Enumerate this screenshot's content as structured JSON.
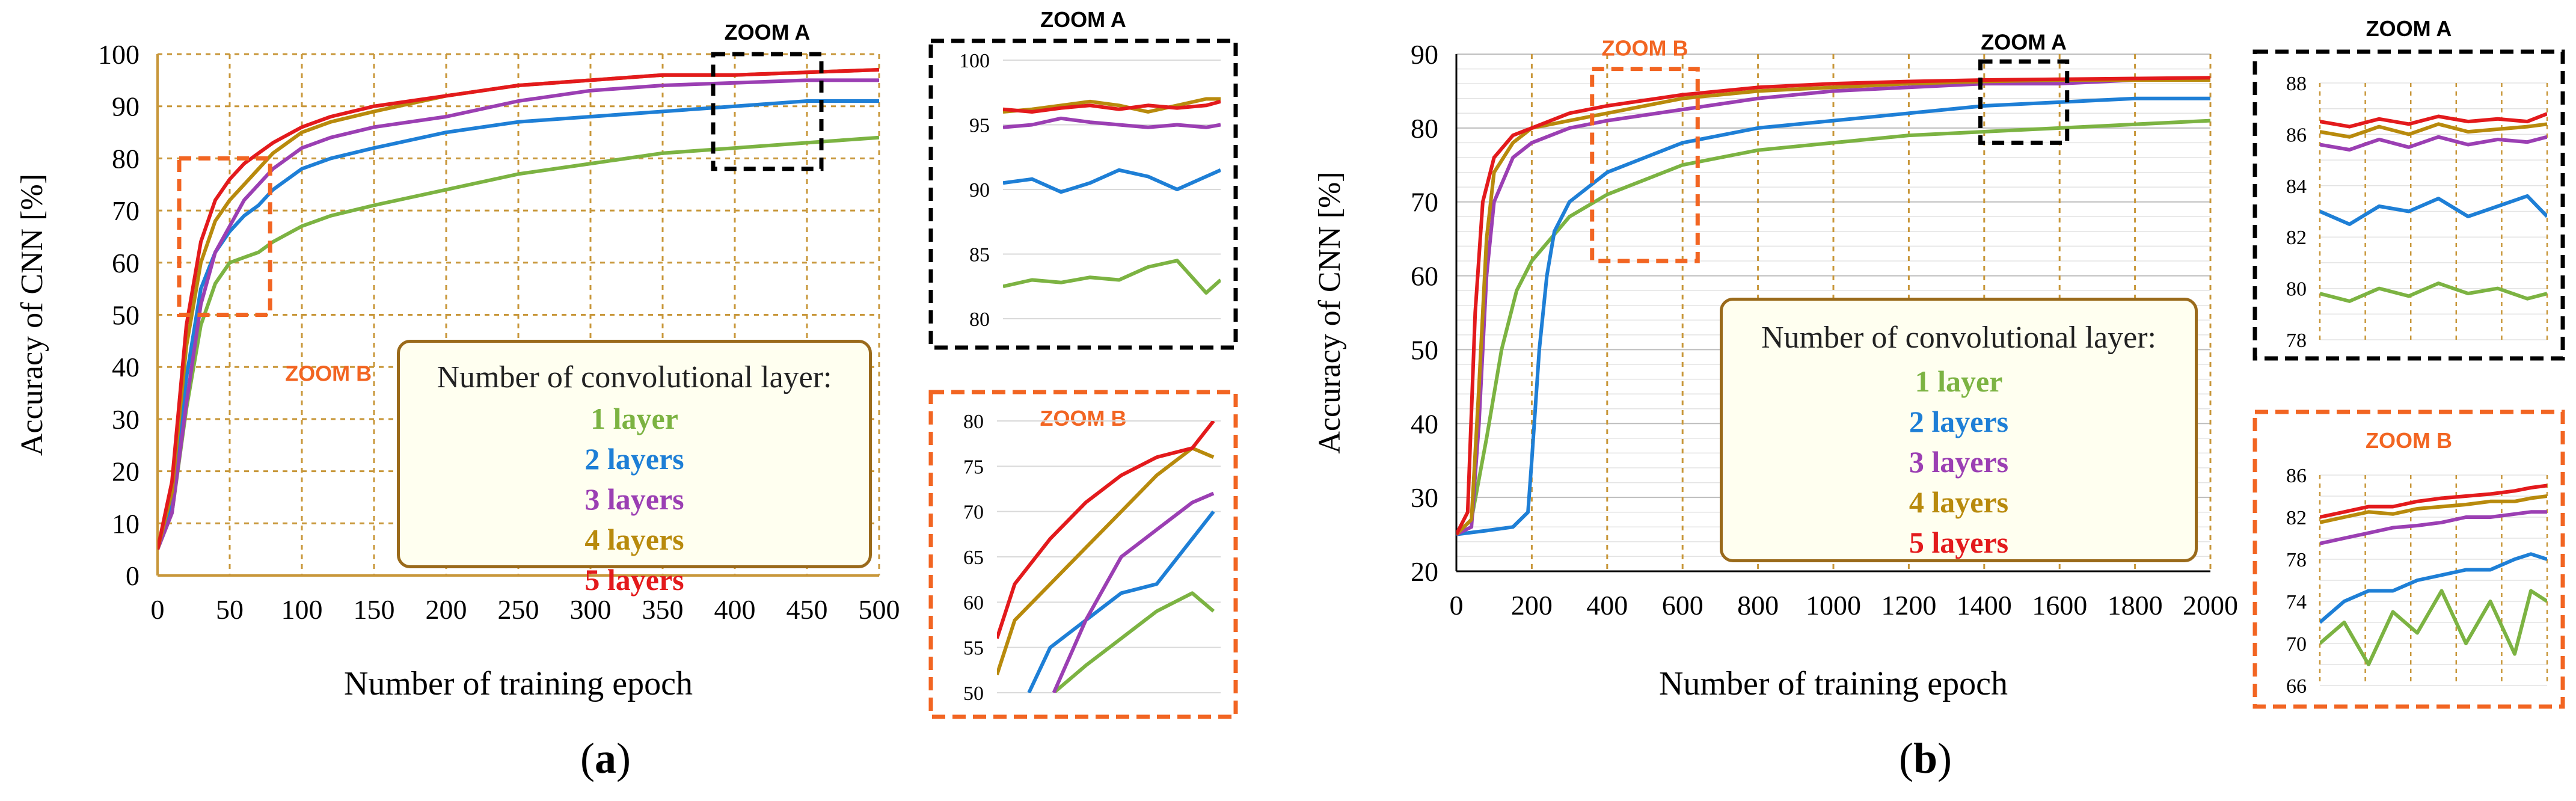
{
  "figure_labels": {
    "a": "a",
    "b": "b"
  },
  "legend": {
    "title": "Number of convolutional layer:",
    "items": [
      {
        "label": "1 layer",
        "color": "#7cb342"
      },
      {
        "label": "2 layers",
        "color": "#1e7fd6"
      },
      {
        "label": "3 layers",
        "color": "#9b3fb3"
      },
      {
        "label": "4 layers",
        "color": "#b88a0c"
      },
      {
        "label": "5 layers",
        "color": "#e31a1c"
      }
    ]
  },
  "chart_data": [
    {
      "id": "a-main",
      "type": "line",
      "xlabel": "Number of training epoch",
      "ylabel": "Accuracy of CNN [%]",
      "xlim": [
        0,
        500
      ],
      "ylim": [
        0,
        100
      ],
      "xticks": [
        0,
        50,
        100,
        150,
        200,
        250,
        300,
        350,
        400,
        450,
        500
      ],
      "yticks": [
        0,
        10,
        20,
        30,
        40,
        50,
        60,
        70,
        80,
        90,
        100
      ],
      "annotations": [
        {
          "label": "ZOOM A",
          "x_range": [
            385,
            460
          ],
          "y_range": [
            78,
            100
          ],
          "color": "#000000"
        },
        {
          "label": "ZOOM B",
          "x_range": [
            15,
            78
          ],
          "y_range": [
            50,
            80
          ],
          "color": "#f26522"
        }
      ],
      "series": [
        {
          "name": "1 layer",
          "x": [
            0,
            10,
            20,
            30,
            40,
            50,
            60,
            70,
            80,
            100,
            120,
            150,
            200,
            250,
            300,
            350,
            400,
            450,
            500
          ],
          "y": [
            5,
            12,
            32,
            48,
            56,
            60,
            61,
            62,
            64,
            67,
            69,
            71,
            74,
            77,
            79,
            81,
            82,
            83,
            84
          ]
        },
        {
          "name": "2 layers",
          "x": [
            0,
            10,
            20,
            30,
            40,
            50,
            60,
            70,
            80,
            100,
            120,
            150,
            200,
            250,
            300,
            350,
            400,
            450,
            500
          ],
          "y": [
            5,
            14,
            38,
            55,
            62,
            66,
            69,
            71,
            74,
            78,
            80,
            82,
            85,
            87,
            88,
            89,
            90,
            91,
            91
          ]
        },
        {
          "name": "3 layers",
          "x": [
            0,
            10,
            20,
            30,
            40,
            50,
            60,
            70,
            80,
            100,
            120,
            150,
            200,
            250,
            300,
            350,
            400,
            450,
            500
          ],
          "y": [
            5,
            12,
            33,
            52,
            62,
            67,
            72,
            75,
            78,
            82,
            84,
            86,
            88,
            91,
            93,
            94,
            94.5,
            95,
            95
          ]
        },
        {
          "name": "4 layers",
          "x": [
            0,
            10,
            20,
            30,
            40,
            50,
            60,
            70,
            80,
            100,
            120,
            150,
            200,
            250,
            300,
            350,
            400,
            450,
            500
          ],
          "y": [
            5,
            16,
            44,
            60,
            68,
            72,
            75,
            78,
            81,
            85,
            87,
            89,
            92,
            94,
            95,
            96,
            96,
            96.5,
            97
          ]
        },
        {
          "name": "5 layers",
          "x": [
            0,
            10,
            20,
            30,
            40,
            50,
            60,
            70,
            80,
            100,
            120,
            150,
            200,
            250,
            300,
            350,
            400,
            450,
            500
          ],
          "y": [
            5,
            18,
            48,
            64,
            72,
            76,
            79,
            81,
            83,
            86,
            88,
            90,
            92,
            94,
            95,
            96,
            96,
            96.5,
            97
          ]
        }
      ]
    },
    {
      "id": "a-zoom-a",
      "type": "line",
      "title": "ZOOM A",
      "xlim": [
        385,
        460
      ],
      "ylim": [
        80,
        100
      ],
      "yticks": [
        80,
        85,
        90,
        95,
        100
      ],
      "series": [
        {
          "name": "1 layer",
          "x": [
            385,
            395,
            405,
            415,
            425,
            435,
            445,
            455,
            460
          ],
          "y": [
            82.5,
            83,
            82.8,
            83.2,
            83,
            84,
            84.5,
            82,
            83
          ]
        },
        {
          "name": "2 layers",
          "x": [
            385,
            395,
            405,
            415,
            425,
            435,
            445,
            455,
            460
          ],
          "y": [
            90.5,
            90.8,
            89.8,
            90.5,
            91.5,
            91,
            90,
            91,
            91.5
          ]
        },
        {
          "name": "3 layers",
          "x": [
            385,
            395,
            405,
            415,
            425,
            435,
            445,
            455,
            460
          ],
          "y": [
            94.8,
            95,
            95.5,
            95.2,
            95,
            94.8,
            95,
            94.8,
            95
          ]
        },
        {
          "name": "4 layers",
          "x": [
            385,
            395,
            405,
            415,
            425,
            435,
            445,
            455,
            460
          ],
          "y": [
            96,
            96.2,
            96.5,
            96.8,
            96.5,
            96,
            96.5,
            97,
            97
          ]
        },
        {
          "name": "5 layers",
          "x": [
            385,
            395,
            405,
            415,
            425,
            435,
            445,
            455,
            460
          ],
          "y": [
            96.2,
            96,
            96.3,
            96.5,
            96.2,
            96.5,
            96.3,
            96.5,
            96.8
          ]
        }
      ]
    },
    {
      "id": "a-zoom-b",
      "type": "line",
      "title": "ZOOM B",
      "xlim": [
        15,
        78
      ],
      "ylim": [
        50,
        80
      ],
      "yticks": [
        50,
        55,
        60,
        65,
        70,
        75,
        80
      ],
      "series": [
        {
          "name": "1 layer",
          "x": [
            31,
            40,
            50,
            60,
            70,
            76
          ],
          "y": [
            50,
            53,
            56,
            59,
            61,
            59
          ]
        },
        {
          "name": "2 layers",
          "x": [
            24,
            30,
            40,
            50,
            60,
            70,
            76
          ],
          "y": [
            50,
            55,
            58,
            61,
            62,
            67,
            70
          ]
        },
        {
          "name": "3 layers",
          "x": [
            31,
            40,
            50,
            60,
            70,
            76
          ],
          "y": [
            50,
            58,
            65,
            68,
            71,
            72
          ]
        },
        {
          "name": "4 layers",
          "x": [
            15,
            20,
            30,
            40,
            50,
            60,
            70,
            76
          ],
          "y": [
            52,
            58,
            62,
            66,
            70,
            74,
            77,
            76
          ]
        },
        {
          "name": "5 layers",
          "x": [
            15,
            20,
            30,
            40,
            50,
            60,
            70,
            76
          ],
          "y": [
            56,
            62,
            67,
            71,
            74,
            76,
            77,
            80
          ]
        }
      ]
    },
    {
      "id": "b-main",
      "type": "line",
      "xlabel": "Number of training epoch",
      "ylabel": "Accuracy of CNN [%]",
      "xlim": [
        0,
        2000
      ],
      "ylim": [
        20,
        90
      ],
      "xticks": [
        0,
        200,
        400,
        600,
        800,
        1000,
        1200,
        1400,
        1600,
        1800,
        2000
      ],
      "yticks": [
        20,
        30,
        40,
        50,
        60,
        70,
        80,
        90
      ],
      "annotations": [
        {
          "label": "ZOOM A",
          "x_range": [
            1390,
            1620
          ],
          "y_range": [
            78,
            89
          ],
          "color": "#000000"
        },
        {
          "label": "ZOOM B",
          "x_range": [
            360,
            640
          ],
          "y_range": [
            62,
            88
          ],
          "color": "#f26522"
        }
      ],
      "series": [
        {
          "name": "1 layer",
          "x": [
            0,
            40,
            80,
            120,
            160,
            200,
            250,
            300,
            400,
            500,
            600,
            800,
            1000,
            1200,
            1400,
            1600,
            1800,
            2000
          ],
          "y": [
            25,
            27,
            38,
            50,
            58,
            62,
            65,
            68,
            71,
            73,
            75,
            77,
            78,
            79,
            79.5,
            80,
            80.5,
            81
          ]
        },
        {
          "name": "2 layers",
          "x": [
            0,
            80,
            150,
            190,
            200,
            220,
            240,
            260,
            300,
            400,
            500,
            600,
            800,
            1000,
            1200,
            1400,
            1600,
            1800,
            2000
          ],
          "y": [
            25,
            25.5,
            26,
            28,
            35,
            50,
            60,
            66,
            70,
            74,
            76,
            78,
            80,
            81,
            82,
            83,
            83.5,
            84,
            84
          ]
        },
        {
          "name": "3 layers",
          "x": [
            0,
            40,
            60,
            80,
            100,
            150,
            200,
            300,
            400,
            600,
            800,
            1000,
            1200,
            1400,
            1600,
            1800,
            2000
          ],
          "y": [
            25,
            26,
            40,
            60,
            70,
            76,
            78,
            80,
            81,
            82.5,
            84,
            85,
            85.5,
            86,
            86,
            86.5,
            86.5
          ]
        },
        {
          "name": "4 layers",
          "x": [
            0,
            40,
            60,
            80,
            100,
            150,
            200,
            300,
            400,
            600,
            800,
            1000,
            1200,
            1400,
            1600,
            1800,
            2000
          ],
          "y": [
            25,
            27,
            45,
            65,
            74,
            78,
            80,
            81,
            82,
            84,
            85,
            85.5,
            86,
            86.3,
            86.5,
            86.5,
            86.5
          ]
        },
        {
          "name": "5 layers",
          "x": [
            0,
            30,
            50,
            70,
            100,
            150,
            200,
            300,
            400,
            600,
            800,
            1000,
            1200,
            1400,
            1600,
            1800,
            2000
          ],
          "y": [
            25,
            28,
            55,
            70,
            76,
            79,
            80,
            82,
            83,
            84.5,
            85.5,
            86,
            86.3,
            86.5,
            86.6,
            86.7,
            86.8
          ]
        }
      ]
    },
    {
      "id": "b-zoom-a",
      "type": "line",
      "title": "ZOOM A",
      "xlim": [
        1390,
        1620
      ],
      "ylim": [
        78,
        88
      ],
      "yticks": [
        78,
        80,
        82,
        84,
        86,
        88
      ],
      "series": [
        {
          "name": "1 layer",
          "x": [
            1390,
            1420,
            1450,
            1480,
            1510,
            1540,
            1570,
            1600,
            1620
          ],
          "y": [
            79.8,
            79.5,
            80,
            79.7,
            80.2,
            79.8,
            80,
            79.6,
            79.8
          ]
        },
        {
          "name": "2 layers",
          "x": [
            1390,
            1420,
            1450,
            1480,
            1510,
            1540,
            1570,
            1600,
            1620
          ],
          "y": [
            83,
            82.5,
            83.2,
            83,
            83.5,
            82.8,
            83.2,
            83.6,
            82.8
          ]
        },
        {
          "name": "3 layers",
          "x": [
            1390,
            1420,
            1450,
            1480,
            1510,
            1540,
            1570,
            1600,
            1620
          ],
          "y": [
            85.6,
            85.4,
            85.8,
            85.5,
            85.9,
            85.6,
            85.8,
            85.7,
            85.9
          ]
        },
        {
          "name": "4 layers",
          "x": [
            1390,
            1420,
            1450,
            1480,
            1510,
            1540,
            1570,
            1600,
            1620
          ],
          "y": [
            86.1,
            85.9,
            86.3,
            86,
            86.4,
            86.1,
            86.2,
            86.3,
            86.4
          ]
        },
        {
          "name": "5 layers",
          "x": [
            1390,
            1420,
            1450,
            1480,
            1510,
            1540,
            1570,
            1600,
            1620
          ],
          "y": [
            86.5,
            86.3,
            86.6,
            86.4,
            86.7,
            86.5,
            86.6,
            86.5,
            86.8
          ]
        }
      ]
    },
    {
      "id": "b-zoom-b",
      "type": "line",
      "title": "ZOOM B",
      "xlim": [
        360,
        640
      ],
      "ylim": [
        66,
        86
      ],
      "yticks": [
        66,
        70,
        74,
        78,
        82,
        86
      ],
      "series": [
        {
          "name": "1 layer",
          "x": [
            360,
            390,
            420,
            450,
            480,
            510,
            540,
            570,
            600,
            620,
            640
          ],
          "y": [
            70,
            72,
            68,
            73,
            71,
            75,
            70,
            74,
            69,
            75,
            74
          ]
        },
        {
          "name": "2 layers",
          "x": [
            360,
            390,
            420,
            450,
            480,
            510,
            540,
            570,
            600,
            620,
            640
          ],
          "y": [
            72,
            74,
            75,
            75,
            76,
            76.5,
            77,
            77,
            78,
            78.5,
            78
          ]
        },
        {
          "name": "3 layers",
          "x": [
            360,
            390,
            420,
            450,
            480,
            510,
            540,
            570,
            600,
            620,
            640
          ],
          "y": [
            79.5,
            80,
            80.5,
            81,
            81.2,
            81.5,
            82,
            82,
            82.3,
            82.5,
            82.5
          ]
        },
        {
          "name": "4 layers",
          "x": [
            360,
            390,
            420,
            450,
            480,
            510,
            540,
            570,
            600,
            620,
            640
          ],
          "y": [
            81.5,
            82,
            82.5,
            82.3,
            82.8,
            83,
            83.2,
            83.5,
            83.5,
            83.8,
            84
          ]
        },
        {
          "name": "5 layers",
          "x": [
            360,
            390,
            420,
            450,
            480,
            510,
            540,
            570,
            600,
            620,
            640
          ],
          "y": [
            82,
            82.5,
            83,
            83,
            83.5,
            83.8,
            84,
            84.2,
            84.5,
            84.8,
            85
          ]
        }
      ]
    }
  ]
}
